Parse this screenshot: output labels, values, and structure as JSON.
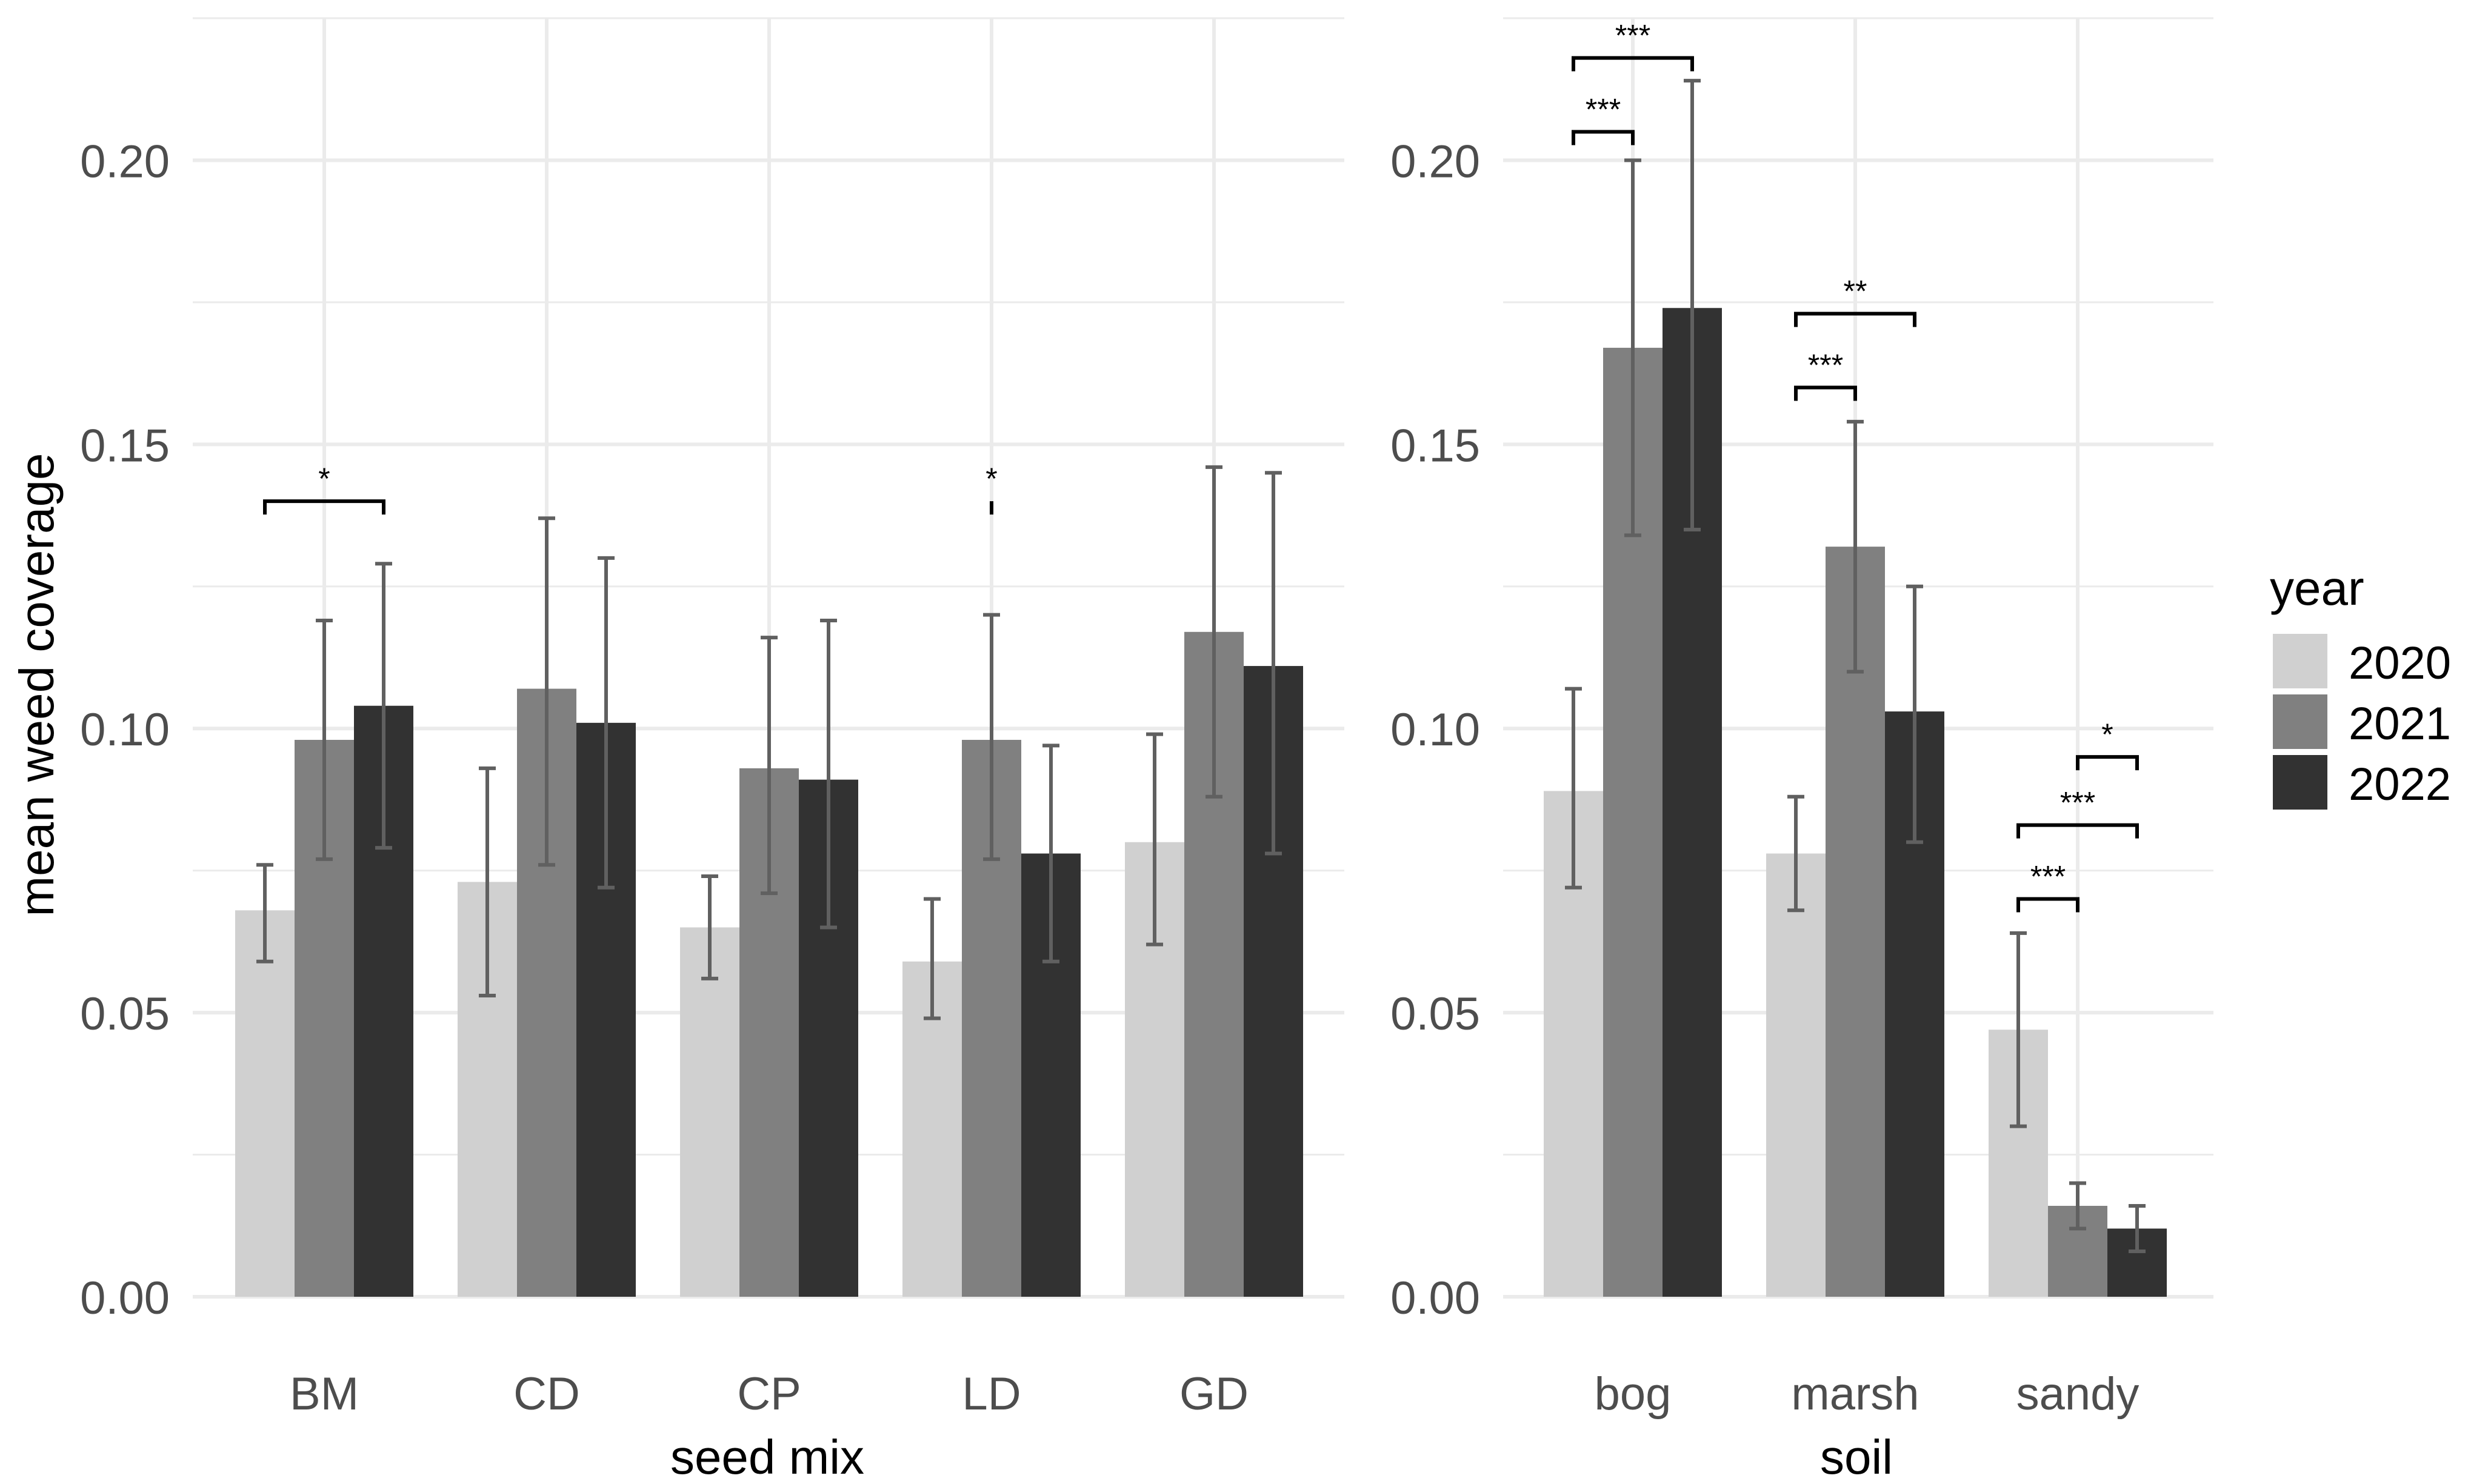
{
  "chart_data": [
    {
      "type": "bar",
      "xlabel": "seed mix",
      "ylabel": "mean weed coverage",
      "ylim": [
        0,
        0.225
      ],
      "yticks": [
        "0.00",
        "0.05",
        "0.10",
        "0.15",
        "0.20"
      ],
      "ytick_values": [
        0,
        0.05,
        0.1,
        0.15,
        0.2
      ],
      "grid": true,
      "categories": [
        "BM",
        "CD",
        "CP",
        "LD",
        "GD"
      ],
      "series": [
        {
          "name": "2020",
          "values": [
            0.068,
            0.073,
            0.065,
            0.059,
            0.08
          ],
          "err_low": [
            0.059,
            0.053,
            0.056,
            0.049,
            0.062
          ],
          "err_high": [
            0.076,
            0.093,
            0.074,
            0.07,
            0.099
          ]
        },
        {
          "name": "2021",
          "values": [
            0.098,
            0.107,
            0.093,
            0.098,
            0.117
          ],
          "err_low": [
            0.077,
            0.076,
            0.071,
            0.077,
            0.088
          ],
          "err_high": [
            0.119,
            0.137,
            0.116,
            0.12,
            0.146
          ]
        },
        {
          "name": "2022",
          "values": [
            0.104,
            0.101,
            0.091,
            0.078,
            0.111
          ],
          "err_low": [
            0.079,
            0.072,
            0.065,
            0.059,
            0.078
          ],
          "err_high": [
            0.129,
            0.13,
            0.119,
            0.097,
            0.145
          ]
        }
      ],
      "significance": [
        {
          "category": "BM",
          "from_series": 0,
          "to_series": 2,
          "y": 0.14,
          "label": "*"
        },
        {
          "category": "LD",
          "from_series": 1,
          "to_series": 1,
          "y": 0.14,
          "label": "*"
        }
      ]
    },
    {
      "type": "bar",
      "xlabel": "soil",
      "ylabel": "",
      "ylim": [
        0,
        0.225
      ],
      "yticks": [
        "0.00",
        "0.05",
        "0.10",
        "0.15",
        "0.20"
      ],
      "ytick_values": [
        0,
        0.05,
        0.1,
        0.15,
        0.2
      ],
      "grid": true,
      "categories": [
        "bog",
        "marsh",
        "sandy"
      ],
      "series": [
        {
          "name": "2020",
          "values": [
            0.089,
            0.078,
            0.047
          ],
          "err_low": [
            0.072,
            0.068,
            0.03
          ],
          "err_high": [
            0.107,
            0.088,
            0.064
          ]
        },
        {
          "name": "2021",
          "values": [
            0.167,
            0.132,
            0.016
          ],
          "err_low": [
            0.134,
            0.11,
            0.012
          ],
          "err_high": [
            0.2,
            0.154,
            0.02
          ]
        },
        {
          "name": "2022",
          "values": [
            0.174,
            0.103,
            0.012
          ],
          "err_low": [
            0.135,
            0.08,
            0.008
          ],
          "err_high": [
            0.214,
            0.125,
            0.016
          ]
        }
      ],
      "significance": [
        {
          "category": "bog",
          "from_series": 0,
          "to_series": 1,
          "y": 0.205,
          "label": "***"
        },
        {
          "category": "bog",
          "from_series": 0,
          "to_series": 2,
          "y": 0.218,
          "label": "***"
        },
        {
          "category": "marsh",
          "from_series": 0,
          "to_series": 1,
          "y": 0.16,
          "label": "***"
        },
        {
          "category": "marsh",
          "from_series": 0,
          "to_series": 2,
          "y": 0.173,
          "label": "**"
        },
        {
          "category": "sandy",
          "from_series": 0,
          "to_series": 1,
          "y": 0.07,
          "label": "***"
        },
        {
          "category": "sandy",
          "from_series": 0,
          "to_series": 2,
          "y": 0.083,
          "label": "***"
        },
        {
          "category": "sandy",
          "from_series": 1,
          "to_series": 2,
          "y": 0.095,
          "label": "*"
        }
      ]
    }
  ],
  "legend": {
    "title": "year",
    "position": "right",
    "items": [
      {
        "label": "2020",
        "color": "#d0d0d0"
      },
      {
        "label": "2021",
        "color": "#808080"
      },
      {
        "label": "2022",
        "color": "#323232"
      }
    ]
  },
  "colors": {
    "gridline": "#ebebeb",
    "errorbar": "#606060",
    "axis_text": "#4d4d4d",
    "title_text": "#000000"
  }
}
